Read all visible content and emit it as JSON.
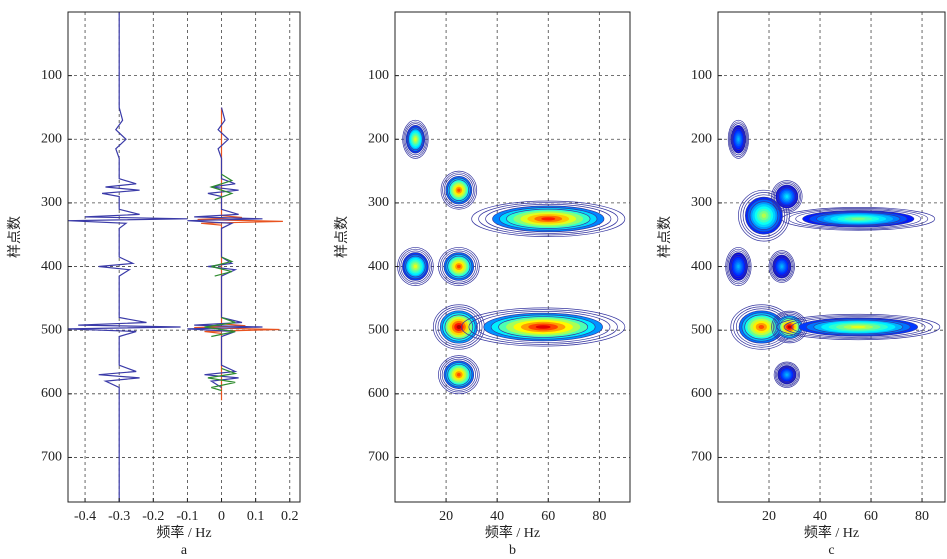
{
  "chart_data": [
    {
      "type": "line",
      "xlabel": "频率 / Hz",
      "ylabel": "样点数",
      "caption": "a",
      "xlim": [
        -0.45,
        0.23
      ],
      "ylim": [
        0,
        770
      ],
      "y_inverted": true,
      "xticks": [
        -0.4,
        -0.3,
        -0.2,
        -0.1,
        0,
        0.1,
        0.2
      ],
      "yticks": [
        100,
        200,
        300,
        400,
        500,
        600,
        700
      ],
      "grid": true,
      "series": [
        {
          "color": "#3a3aa8",
          "x": [
            0,
            150,
            170,
            185,
            200,
            215,
            230,
            262,
            270,
            275,
            280,
            285,
            290,
            310,
            318,
            322,
            325,
            328,
            332,
            340,
            385,
            395,
            400,
            405,
            415,
            480,
            488,
            492,
            495,
            498,
            502,
            510,
            555,
            565,
            570,
            575,
            580,
            590,
            770
          ],
          "values": [
            -0.3,
            -0.3,
            -0.29,
            -0.31,
            -0.28,
            -0.31,
            -0.3,
            -0.3,
            -0.25,
            -0.34,
            -0.24,
            -0.35,
            -0.3,
            -0.3,
            -0.24,
            -0.4,
            -0.1,
            -0.45,
            -0.28,
            -0.3,
            -0.3,
            -0.26,
            -0.36,
            -0.27,
            -0.3,
            -0.3,
            -0.22,
            -0.42,
            -0.12,
            -0.45,
            -0.25,
            -0.3,
            -0.3,
            -0.25,
            -0.36,
            -0.24,
            -0.34,
            -0.3,
            -0.3
          ]
        },
        {
          "color": "#e8531f",
          "x": [
            150,
            320,
            323,
            326,
            329,
            332,
            335,
            490,
            493,
            496,
            499,
            502,
            505,
            610
          ],
          "values": [
            0,
            0,
            0.06,
            -0.07,
            0.18,
            -0.06,
            0,
            0,
            0.07,
            -0.08,
            0.17,
            -0.05,
            0,
            0
          ]
        },
        {
          "color": "#3a3aa8",
          "x": [
            150,
            170,
            185,
            200,
            215,
            230,
            262,
            270,
            275,
            280,
            285,
            290,
            310,
            318,
            322,
            325,
            328,
            332,
            340,
            385,
            395,
            400,
            405,
            415,
            480,
            488,
            492,
            495,
            498,
            502,
            510,
            555,
            565,
            570,
            575,
            580,
            590
          ],
          "values": [
            0,
            0.01,
            -0.01,
            0.02,
            -0.01,
            0,
            0,
            0.04,
            -0.03,
            0.05,
            -0.04,
            0,
            0,
            0.05,
            -0.08,
            0.12,
            -0.1,
            0.03,
            0,
            0,
            0.03,
            -0.04,
            0.04,
            0,
            0,
            0.06,
            -0.08,
            0.12,
            -0.1,
            0.04,
            0,
            0,
            0.04,
            -0.05,
            0.05,
            -0.03,
            0
          ]
        },
        {
          "color": "#2e8b2e",
          "x": [
            255,
            265,
            275,
            285,
            295,
            300,
            385,
            392,
            400,
            408,
            415,
            420,
            480,
            488,
            495,
            502,
            510,
            515,
            560,
            568,
            575,
            582,
            590,
            595
          ],
          "values": [
            0,
            0.03,
            -0.03,
            0.03,
            -0.02,
            null,
            0,
            0.03,
            -0.03,
            0.03,
            -0.02,
            null,
            0,
            0.04,
            -0.05,
            0.04,
            -0.03,
            null,
            0,
            0.04,
            -0.04,
            0.04,
            -0.03,
            0
          ]
        }
      ]
    },
    {
      "type": "contour",
      "xlabel": "频率 / Hz",
      "ylabel": "样点数",
      "caption": "b",
      "xlim": [
        0,
        92
      ],
      "ylim": [
        0,
        770
      ],
      "y_inverted": true,
      "xticks": [
        20,
        40,
        60,
        80
      ],
      "yticks": [
        100,
        200,
        300,
        400,
        500,
        600,
        700
      ],
      "grid": true,
      "x": [
        8,
        25,
        60,
        8,
        25,
        25,
        58,
        25
      ],
      "y": [
        200,
        280,
        325,
        400,
        400,
        495,
        495,
        570
      ],
      "values": [
        0.6,
        0.8,
        0.85,
        0.6,
        0.8,
        0.95,
        0.9,
        0.8
      ],
      "xwidth": [
        5,
        7,
        30,
        7,
        8,
        10,
        32,
        8
      ],
      "ywidth": [
        30,
        30,
        28,
        30,
        30,
        35,
        30,
        30
      ]
    },
    {
      "type": "contour",
      "xlabel": "频率 / Hz",
      "ylabel": "样点数",
      "caption": "c",
      "xlim": [
        0,
        89
      ],
      "ylim": [
        0,
        770
      ],
      "y_inverted": true,
      "xticks": [
        20,
        40,
        60,
        80
      ],
      "yticks": [
        100,
        200,
        300,
        400,
        500,
        600,
        700
      ],
      "grid": true,
      "x": [
        8,
        18,
        27,
        55,
        8,
        25,
        17,
        28,
        55,
        27
      ],
      "y": [
        200,
        320,
        290,
        325,
        400,
        400,
        495,
        495,
        495,
        570
      ],
      "values": [
        0.3,
        0.55,
        0.35,
        0.5,
        0.3,
        0.3,
        0.8,
        0.95,
        0.6,
        0.3
      ],
      "xwidth": [
        4,
        10,
        6,
        30,
        5,
        5,
        12,
        7,
        32,
        5
      ],
      "ywidth": [
        30,
        40,
        25,
        18,
        30,
        25,
        35,
        25,
        20,
        20
      ]
    }
  ]
}
